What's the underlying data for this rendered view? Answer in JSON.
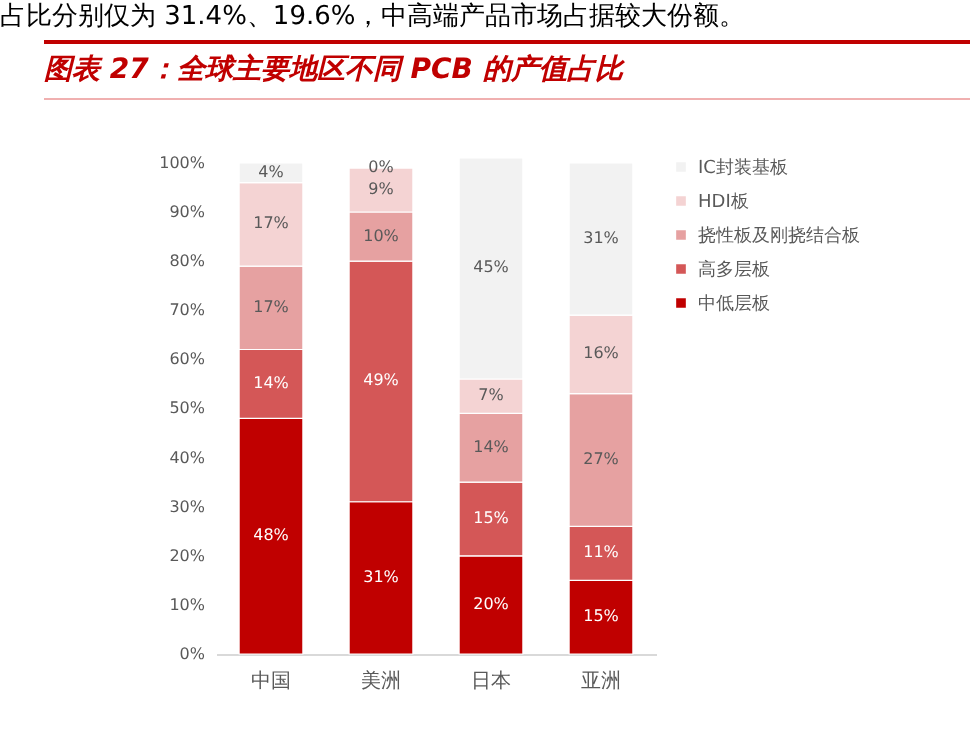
{
  "chart_data": {
    "type": "bar",
    "stacked": true,
    "title": "图表 27：全球主要地区不同 PCB 的产值占比",
    "annotations": [
      "占比分别仅为 31.4%、19.6%，中高端产品市场占据较大份额。"
    ],
    "categories": [
      "中国",
      "美洲",
      "日本",
      "亚洲"
    ],
    "series": [
      {
        "name": "中低层板",
        "color": "#c00000",
        "values": [
          48,
          31,
          20,
          15
        ],
        "value_labels": [
          "48%",
          "31%",
          "20%",
          "15%"
        ]
      },
      {
        "name": "高多层板",
        "color": "#d45757",
        "values": [
          14,
          49,
          15,
          11
        ],
        "value_labels": [
          "14%",
          "49%",
          "15%",
          "11%"
        ]
      },
      {
        "name": "挠性板及刚挠结合板",
        "color": "#e6a1a1",
        "values": [
          17,
          10,
          14,
          27
        ],
        "value_labels": [
          "17%",
          "10%",
          "14%",
          "27%"
        ]
      },
      {
        "name": "HDI板",
        "color": "#f4d3d3",
        "values": [
          17,
          9,
          7,
          16
        ],
        "value_labels": [
          "17%",
          "9%",
          "7%",
          "16%"
        ]
      },
      {
        "name": "IC封装基板",
        "color": "#f2f2f2",
        "values": [
          4,
          0,
          45,
          31
        ],
        "value_labels": [
          "4%",
          "0%",
          "45%",
          "31%"
        ]
      }
    ],
    "ylim": [
      0,
      101
    ],
    "yticks": [
      {
        "value": 0,
        "label": "0%"
      },
      {
        "value": 10,
        "label": "10%"
      },
      {
        "value": 20,
        "label": "20%"
      },
      {
        "value": 30,
        "label": "30%"
      },
      {
        "value": 40,
        "label": "40%"
      },
      {
        "value": 50,
        "label": "50%"
      },
      {
        "value": 60,
        "label": "60%"
      },
      {
        "value": 70,
        "label": "70%"
      },
      {
        "value": 80,
        "label": "80%"
      },
      {
        "value": 90,
        "label": "90%"
      },
      {
        "value": 100,
        "label": "100%"
      }
    ],
    "grid": false,
    "legend": "right"
  }
}
